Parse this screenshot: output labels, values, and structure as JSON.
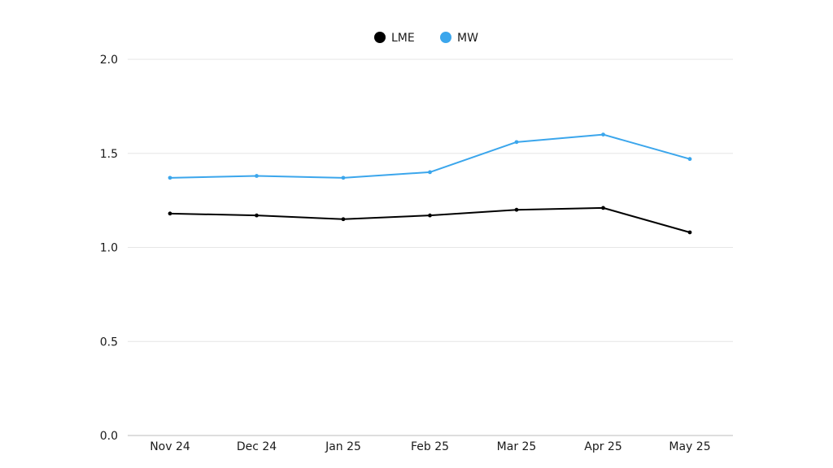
{
  "chart_data": {
    "type": "line",
    "categories": [
      "Nov 24",
      "Dec 24",
      "Jan 25",
      "Feb 25",
      "Mar 25",
      "Apr 25",
      "May 25"
    ],
    "series": [
      {
        "name": "LME",
        "color": "#000000",
        "values": [
          1.18,
          1.17,
          1.15,
          1.17,
          1.2,
          1.21,
          1.08
        ]
      },
      {
        "name": "MW",
        "color": "#3ba6ec",
        "values": [
          1.37,
          1.38,
          1.37,
          1.4,
          1.56,
          1.6,
          1.47
        ]
      }
    ],
    "yticks": [
      "0.0",
      "0.5",
      "1.0",
      "1.5",
      "2.0"
    ],
    "ylim": [
      0,
      2
    ],
    "xlabel": "",
    "ylabel": "",
    "title": "",
    "grid": "horizontal",
    "legend_position": "top-center",
    "gridline_color": "#e6e6e6",
    "baseline_color": "#bdbdbd"
  }
}
